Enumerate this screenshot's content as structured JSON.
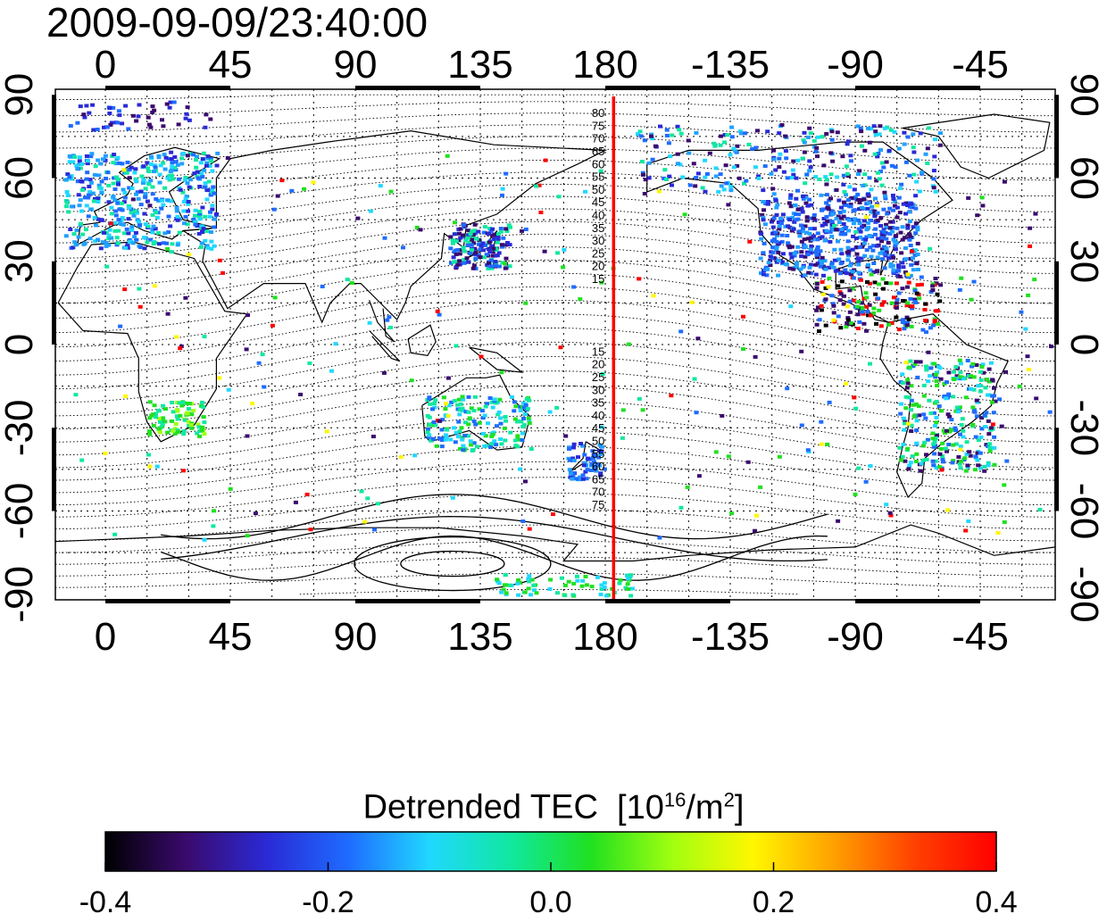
{
  "title": "2009-09-09/23:40:00",
  "map": {
    "lon_ticks": [
      "0",
      "45",
      "90",
      "135",
      "180",
      "-135",
      "-90",
      "-45"
    ],
    "lon_values": [
      0,
      45,
      90,
      135,
      180,
      225,
      270,
      315
    ],
    "lat_ticks": [
      "90",
      "60",
      "30",
      "0",
      "-30",
      "-60",
      "-90"
    ],
    "lat_values": [
      90,
      60,
      30,
      0,
      -30,
      -60,
      -90
    ],
    "lon_range": [
      -18,
      342
    ],
    "lat_range": [
      -92,
      92
    ],
    "terminator_longitude": 183,
    "terminator_color": "#ff0000",
    "contour_labels_north": [
      "80",
      "75",
      "70",
      "65",
      "60",
      "55",
      "50",
      "45",
      "40",
      "35",
      "30",
      "25",
      "20",
      "15"
    ],
    "contour_labels_south": [
      "15",
      "20",
      "25",
      "30",
      "35",
      "40",
      "45",
      "50",
      "55",
      "60",
      "65",
      "70",
      "75"
    ]
  },
  "colorbar": {
    "label": "Detrended TEC",
    "unit_base": "[10",
    "unit_exp": "16",
    "unit_mid": "/m",
    "unit_exp2": "2",
    "unit_end": "]",
    "ticks": [
      "-0.4",
      "-0.2",
      "0.0",
      "0.2",
      "0.4"
    ],
    "tick_values": [
      -0.4,
      -0.2,
      0.0,
      0.2,
      0.4
    ],
    "range": [
      -0.4,
      0.4
    ],
    "colors": [
      "#000000",
      "#3a0a6e",
      "#2a2ad6",
      "#1e6cff",
      "#20d8ff",
      "#10e8a0",
      "#20e020",
      "#a0ff10",
      "#fff700",
      "#ffa000",
      "#ff4000",
      "#ff0000"
    ]
  }
}
